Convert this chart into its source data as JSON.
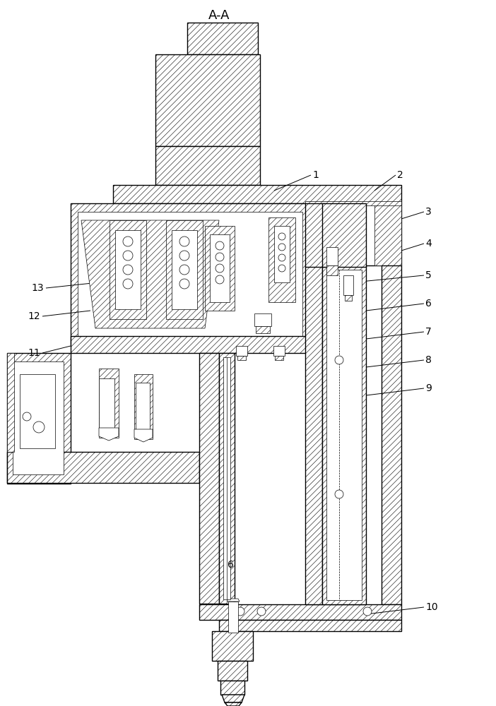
{
  "title": "A-A",
  "bg_color": "#ffffff",
  "figsize": [
    7.02,
    10.0
  ],
  "dpi": 100,
  "lw": 1.0,
  "lw_thin": 0.5,
  "hatch": "////",
  "hatch2": "\\\\\\\\",
  "label_fs": 10
}
